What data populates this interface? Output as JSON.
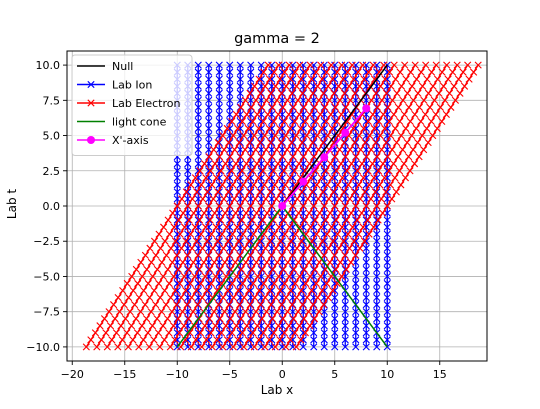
{
  "chart_data": {
    "type": "line",
    "title": "gamma = 2",
    "xlabel": "Lab x",
    "ylabel": "Lab t",
    "xlim": [
      -20.5,
      19.5
    ],
    "ylim": [
      -11,
      11
    ],
    "xticks": [
      -20,
      -15,
      -10,
      -5,
      0,
      5,
      10,
      15
    ],
    "yticks": [
      -10.0,
      -7.5,
      -5.0,
      -2.5,
      0.0,
      2.5,
      5.0,
      7.5,
      10.0
    ],
    "grid": true,
    "legend_position": "top-left",
    "ion_worldlines": {
      "x_positions": [
        -10,
        -9,
        -8,
        -7,
        -6,
        -5,
        -4,
        -3,
        -2,
        -1,
        0,
        1,
        2,
        3,
        4,
        5,
        6,
        7,
        8,
        9,
        10
      ],
      "t_from": -10,
      "t_to": 10,
      "t_step": 0.5
    },
    "electron_worldlines": {
      "x_at_t0": [
        -10,
        -9,
        -8,
        -7,
        -6,
        -5,
        -4,
        -3,
        -2,
        -1,
        0,
        1,
        2,
        3,
        4,
        5,
        6,
        7,
        8,
        9,
        10
      ],
      "slope_dx_dt": 0.866,
      "t_from": -10,
      "t_to": 10,
      "t_step": 0.5
    },
    "series": [
      {
        "name": "Null",
        "color": "#000000",
        "marker": "none",
        "points": [
          [
            0,
            0
          ],
          [
            10,
            10
          ]
        ]
      },
      {
        "name": "Lab Ion",
        "color": "#0000ff",
        "marker": "x"
      },
      {
        "name": "Lab Electron",
        "color": "#ff0000",
        "marker": "x"
      },
      {
        "name": "light cone",
        "color": "#008000",
        "marker": "none",
        "segments": [
          [
            [
              0,
              0
            ],
            [
              -10,
              -10
            ]
          ],
          [
            [
              0,
              0
            ],
            [
              10,
              -10
            ]
          ]
        ]
      },
      {
        "name": "X'-axis",
        "color": "#ff00ff",
        "marker": "o",
        "points": [
          [
            0,
            0
          ],
          [
            2,
            1.73
          ],
          [
            4,
            3.46
          ],
          [
            6,
            5.2
          ],
          [
            8,
            6.93
          ]
        ]
      }
    ]
  }
}
